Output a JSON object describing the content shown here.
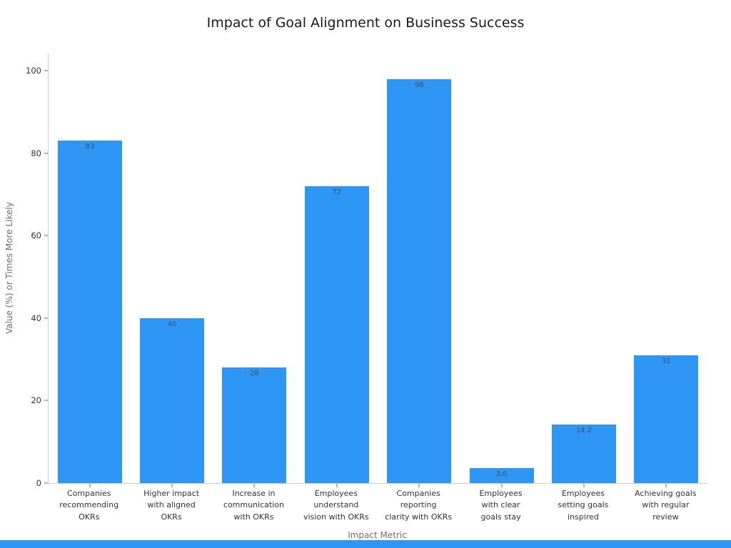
{
  "chart_data": {
    "type": "bar",
    "title": "Impact of Goal Alignment on Business Success",
    "xlabel": "Impact Metric",
    "ylabel": "Value (%) or Times More Likely",
    "ylim": [
      0,
      104
    ],
    "yticks": [
      0,
      20,
      40,
      60,
      80,
      100
    ],
    "grid": false,
    "legend_position": "none",
    "categories": [
      "Companies\nrecommending\nOKRs",
      "Higher impact\nwith aligned\nOKRs",
      "Increase in\ncommunication\nwith OKRs",
      "Employees\nunderstand\nvision with OKRs",
      "Companies\nreporting\nclarity with OKRs",
      "Employees\nwith clear\ngoals stay",
      "Employees\nsetting goals\ninspired",
      "Achieving goals\nwith regular\nreview"
    ],
    "values": [
      83,
      40,
      28,
      72,
      98,
      3.6,
      14.2,
      31
    ],
    "value_labels": [
      "83",
      "40",
      "28",
      "72",
      "98",
      "3.6",
      "14.2",
      "31"
    ],
    "bar_color": "#2e96f5"
  },
  "decor": {
    "bottom_accent_color": "#2e96f5"
  }
}
